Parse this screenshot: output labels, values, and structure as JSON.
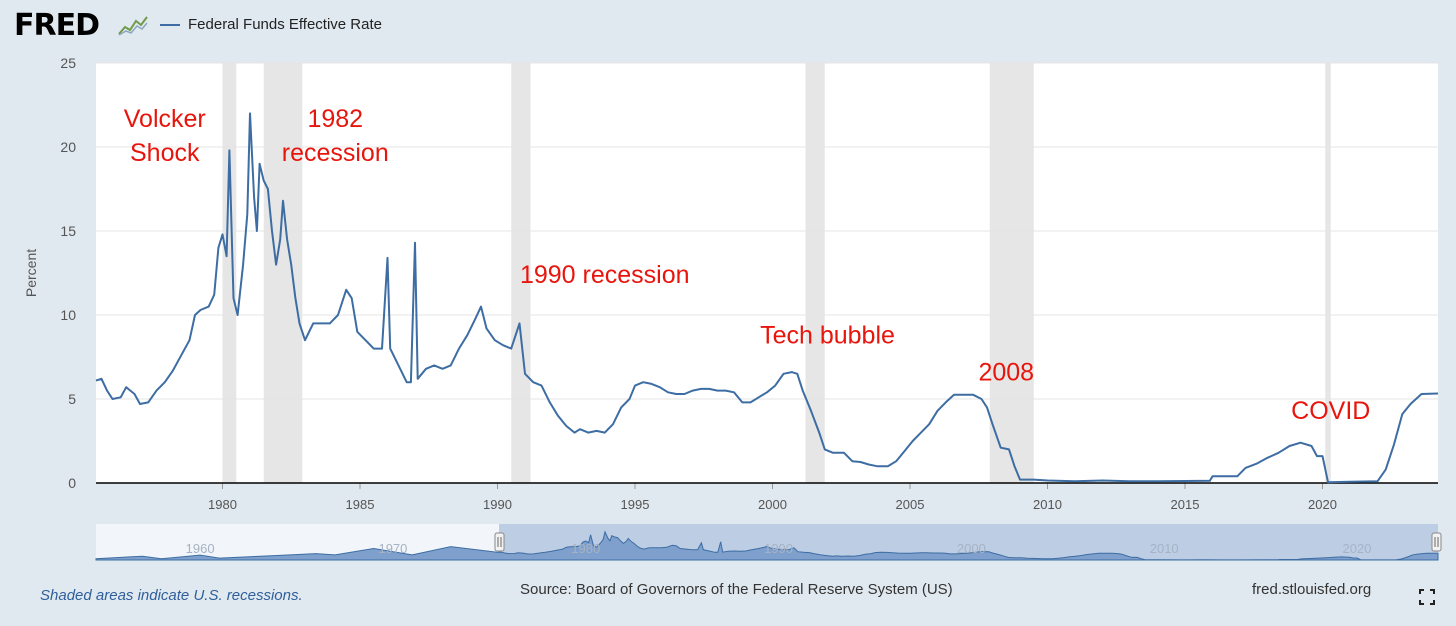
{
  "header": {
    "logo": "FRED",
    "legend_label": "Federal Funds Effective Rate"
  },
  "footer": {
    "note": "Shaded areas indicate U.S. recessions.",
    "source": "Source: Board of Governors of the Federal Reserve System (US)",
    "url": "fred.stlouisfed.org"
  },
  "colors": {
    "line": "#3d6da3",
    "annotation": "#e8150d",
    "recession": "#e6e6e6",
    "background": "#e1e9f0"
  },
  "icons": {
    "logo_graph": "line-graph-icon",
    "fullscreen": "fullscreen-icon"
  },
  "chart_data": {
    "type": "line",
    "title": "",
    "xlabel": "",
    "ylabel": "Percent",
    "xlim": [
      1975.4,
      2024.2
    ],
    "ylim": [
      0,
      25
    ],
    "x_ticks": [
      1980,
      1985,
      1990,
      1995,
      2000,
      2005,
      2010,
      2015,
      2020
    ],
    "y_ticks": [
      0,
      5,
      10,
      15,
      20,
      25
    ],
    "grid": "horizontal",
    "legend": "top-left",
    "recessions": [
      [
        1980.0,
        1980.5
      ],
      [
        1981.5,
        1982.9
      ],
      [
        1990.5,
        1991.2
      ],
      [
        2001.2,
        2001.9
      ],
      [
        2007.9,
        2009.5
      ],
      [
        2020.1,
        2020.3
      ]
    ],
    "annotations": [
      {
        "lines": [
          "Volcker",
          "Shock"
        ],
        "x": 1977.9,
        "y": 21.2
      },
      {
        "lines": [
          "1982",
          "recession"
        ],
        "x": 1984.1,
        "y": 21.2
      },
      {
        "lines": [
          "1990 recession"
        ],
        "x": 1993.9,
        "y": 11.9
      },
      {
        "lines": [
          "Tech bubble"
        ],
        "x": 2002.0,
        "y": 8.3
      },
      {
        "lines": [
          "2008"
        ],
        "x": 2008.5,
        "y": 6.1
      },
      {
        "lines": [
          "COVID"
        ],
        "x": 2020.3,
        "y": 3.8
      }
    ],
    "series": [
      {
        "name": "Federal Funds Effective Rate",
        "points": [
          [
            1975.4,
            6.1
          ],
          [
            1975.6,
            6.2
          ],
          [
            1975.8,
            5.5
          ],
          [
            1976.0,
            5.0
          ],
          [
            1976.3,
            5.1
          ],
          [
            1976.5,
            5.7
          ],
          [
            1976.8,
            5.3
          ],
          [
            1977.0,
            4.7
          ],
          [
            1977.3,
            4.8
          ],
          [
            1977.6,
            5.5
          ],
          [
            1977.9,
            6.0
          ],
          [
            1978.2,
            6.7
          ],
          [
            1978.5,
            7.6
          ],
          [
            1978.8,
            8.5
          ],
          [
            1979.0,
            10.0
          ],
          [
            1979.2,
            10.3
          ],
          [
            1979.5,
            10.5
          ],
          [
            1979.7,
            11.2
          ],
          [
            1979.85,
            14.0
          ],
          [
            1980.0,
            14.8
          ],
          [
            1980.15,
            13.5
          ],
          [
            1980.25,
            19.8
          ],
          [
            1980.4,
            11.0
          ],
          [
            1980.55,
            10.0
          ],
          [
            1980.75,
            13.0
          ],
          [
            1980.9,
            16.0
          ],
          [
            1981.0,
            22.0
          ],
          [
            1981.15,
            17.0
          ],
          [
            1981.25,
            15.0
          ],
          [
            1981.35,
            19.0
          ],
          [
            1981.5,
            18.0
          ],
          [
            1981.65,
            17.5
          ],
          [
            1981.8,
            15.0
          ],
          [
            1981.95,
            13.0
          ],
          [
            1982.1,
            14.5
          ],
          [
            1982.2,
            16.8
          ],
          [
            1982.35,
            14.5
          ],
          [
            1982.5,
            13.0
          ],
          [
            1982.65,
            11.0
          ],
          [
            1982.8,
            9.5
          ],
          [
            1983.0,
            8.5
          ],
          [
            1983.3,
            9.5
          ],
          [
            1983.6,
            9.5
          ],
          [
            1983.9,
            9.5
          ],
          [
            1984.2,
            10.0
          ],
          [
            1984.5,
            11.5
          ],
          [
            1984.7,
            11.0
          ],
          [
            1984.9,
            9.0
          ],
          [
            1985.2,
            8.5
          ],
          [
            1985.5,
            8.0
          ],
          [
            1985.8,
            8.0
          ],
          [
            1986.0,
            13.4
          ],
          [
            1986.1,
            8.0
          ],
          [
            1986.4,
            7.0
          ],
          [
            1986.7,
            6.0
          ],
          [
            1986.85,
            6.0
          ],
          [
            1987.0,
            14.3
          ],
          [
            1987.1,
            6.2
          ],
          [
            1987.4,
            6.8
          ],
          [
            1987.7,
            7.0
          ],
          [
            1988.0,
            6.8
          ],
          [
            1988.3,
            7.0
          ],
          [
            1988.6,
            8.0
          ],
          [
            1988.9,
            8.8
          ],
          [
            1989.2,
            9.8
          ],
          [
            1989.4,
            10.5
          ],
          [
            1989.6,
            9.2
          ],
          [
            1989.9,
            8.5
          ],
          [
            1990.2,
            8.2
          ],
          [
            1990.5,
            8.0
          ],
          [
            1990.8,
            9.5
          ],
          [
            1991.0,
            6.5
          ],
          [
            1991.3,
            6.0
          ],
          [
            1991.6,
            5.8
          ],
          [
            1991.9,
            4.8
          ],
          [
            1992.2,
            4.0
          ],
          [
            1992.5,
            3.4
          ],
          [
            1992.8,
            3.0
          ],
          [
            1993.0,
            3.2
          ],
          [
            1993.3,
            3.0
          ],
          [
            1993.6,
            3.1
          ],
          [
            1993.9,
            3.0
          ],
          [
            1994.2,
            3.5
          ],
          [
            1994.5,
            4.5
          ],
          [
            1994.8,
            5.0
          ],
          [
            1995.0,
            5.8
          ],
          [
            1995.3,
            6.0
          ],
          [
            1995.6,
            5.9
          ],
          [
            1995.9,
            5.7
          ],
          [
            1996.2,
            5.4
          ],
          [
            1996.5,
            5.3
          ],
          [
            1996.8,
            5.3
          ],
          [
            1997.1,
            5.5
          ],
          [
            1997.4,
            5.6
          ],
          [
            1997.7,
            5.6
          ],
          [
            1998.0,
            5.5
          ],
          [
            1998.3,
            5.5
          ],
          [
            1998.6,
            5.4
          ],
          [
            1998.9,
            4.8
          ],
          [
            1999.2,
            4.8
          ],
          [
            1999.5,
            5.1
          ],
          [
            1999.8,
            5.4
          ],
          [
            2000.1,
            5.8
          ],
          [
            2000.4,
            6.5
          ],
          [
            2000.7,
            6.6
          ],
          [
            2000.9,
            6.5
          ],
          [
            2001.1,
            5.5
          ],
          [
            2001.4,
            4.3
          ],
          [
            2001.7,
            3.0
          ],
          [
            2001.9,
            2.0
          ],
          [
            2002.2,
            1.8
          ],
          [
            2002.6,
            1.8
          ],
          [
            2002.9,
            1.3
          ],
          [
            2003.2,
            1.25
          ],
          [
            2003.5,
            1.1
          ],
          [
            2003.8,
            1.0
          ],
          [
            2004.2,
            1.0
          ],
          [
            2004.5,
            1.3
          ],
          [
            2004.8,
            1.9
          ],
          [
            2005.1,
            2.5
          ],
          [
            2005.4,
            3.0
          ],
          [
            2005.7,
            3.5
          ],
          [
            2006.0,
            4.3
          ],
          [
            2006.3,
            4.8
          ],
          [
            2006.6,
            5.25
          ],
          [
            2006.9,
            5.25
          ],
          [
            2007.3,
            5.25
          ],
          [
            2007.6,
            5.0
          ],
          [
            2007.8,
            4.5
          ],
          [
            2008.0,
            3.5
          ],
          [
            2008.3,
            2.1
          ],
          [
            2008.6,
            2.0
          ],
          [
            2008.8,
            1.0
          ],
          [
            2009.0,
            0.2
          ],
          [
            2009.5,
            0.2
          ],
          [
            2010.0,
            0.15
          ],
          [
            2011.0,
            0.1
          ],
          [
            2012.0,
            0.15
          ],
          [
            2013.0,
            0.1
          ],
          [
            2014.0,
            0.1
          ],
          [
            2015.0,
            0.12
          ],
          [
            2015.9,
            0.13
          ],
          [
            2016.0,
            0.4
          ],
          [
            2016.9,
            0.4
          ],
          [
            2017.2,
            0.9
          ],
          [
            2017.6,
            1.15
          ],
          [
            2018.0,
            1.5
          ],
          [
            2018.4,
            1.8
          ],
          [
            2018.8,
            2.2
          ],
          [
            2019.2,
            2.4
          ],
          [
            2019.6,
            2.2
          ],
          [
            2019.8,
            1.6
          ],
          [
            2020.0,
            1.6
          ],
          [
            2020.2,
            0.05
          ],
          [
            2021.0,
            0.08
          ],
          [
            2022.0,
            0.1
          ],
          [
            2022.3,
            0.8
          ],
          [
            2022.6,
            2.3
          ],
          [
            2022.9,
            4.1
          ],
          [
            2023.2,
            4.7
          ],
          [
            2023.6,
            5.3
          ],
          [
            2024.2,
            5.33
          ]
        ]
      }
    ],
    "navigator": {
      "x_ticks": [
        1960,
        1970,
        1980,
        1990,
        2000,
        2010,
        2020
      ],
      "selected_range": [
        1975.4,
        2024.2
      ]
    }
  }
}
